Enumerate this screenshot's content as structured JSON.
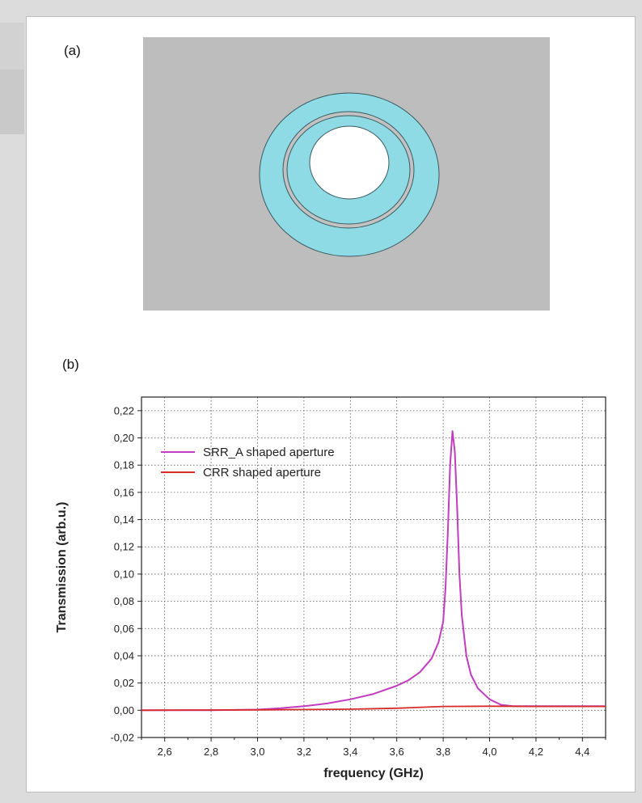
{
  "panels": {
    "a_label": "(a)",
    "b_label": "(b)"
  },
  "figure_a": {
    "background_color": "#bdbdbd",
    "ring_color": "#8fdbe5",
    "gap_color": "#c2c2c2"
  },
  "chart_data": {
    "type": "line",
    "title": "",
    "xlabel": "frequency (GHz)",
    "ylabel": "Transmission (arb.u.)",
    "xlim": [
      2.5,
      4.5
    ],
    "ylim": [
      -0.02,
      0.23
    ],
    "x_ticks": [
      "2,6",
      "2,8",
      "3,0",
      "3,2",
      "3,4",
      "3,6",
      "3,8",
      "4,0",
      "4,2",
      "4,4"
    ],
    "x_tick_values": [
      2.6,
      2.8,
      3.0,
      3.2,
      3.4,
      3.6,
      3.8,
      4.0,
      4.2,
      4.4
    ],
    "y_ticks": [
      "-0,02",
      "0,00",
      "0,02",
      "0,04",
      "0,06",
      "0,08",
      "0,10",
      "0,12",
      "0,14",
      "0,16",
      "0,18",
      "0,20",
      "0,22"
    ],
    "y_tick_values": [
      -0.02,
      0.0,
      0.02,
      0.04,
      0.06,
      0.08,
      0.1,
      0.12,
      0.14,
      0.16,
      0.18,
      0.2,
      0.22
    ],
    "grid": true,
    "legend_position": "top-left",
    "series": [
      {
        "name": "SRR_A shaped aperture",
        "color": "#c23cc0",
        "x": [
          2.5,
          2.8,
          3.0,
          3.1,
          3.2,
          3.3,
          3.4,
          3.5,
          3.6,
          3.65,
          3.7,
          3.75,
          3.78,
          3.8,
          3.81,
          3.82,
          3.83,
          3.84,
          3.85,
          3.86,
          3.87,
          3.88,
          3.9,
          3.92,
          3.95,
          4.0,
          4.05,
          4.1,
          4.2,
          4.3,
          4.4,
          4.5
        ],
        "y": [
          0.0,
          0.0,
          0.0005,
          0.0015,
          0.003,
          0.005,
          0.008,
          0.012,
          0.018,
          0.022,
          0.028,
          0.038,
          0.05,
          0.065,
          0.09,
          0.13,
          0.18,
          0.205,
          0.19,
          0.15,
          0.1,
          0.07,
          0.04,
          0.026,
          0.016,
          0.008,
          0.004,
          0.003,
          0.003,
          0.003,
          0.003,
          0.003
        ]
      },
      {
        "name": "CRR shaped aperture",
        "color": "#d62c2c",
        "x": [
          2.5,
          3.0,
          3.4,
          3.6,
          3.8,
          4.0,
          4.2,
          4.5
        ],
        "y": [
          0.0,
          0.0003,
          0.0008,
          0.0015,
          0.0028,
          0.003,
          0.0028,
          0.0028
        ]
      }
    ]
  }
}
